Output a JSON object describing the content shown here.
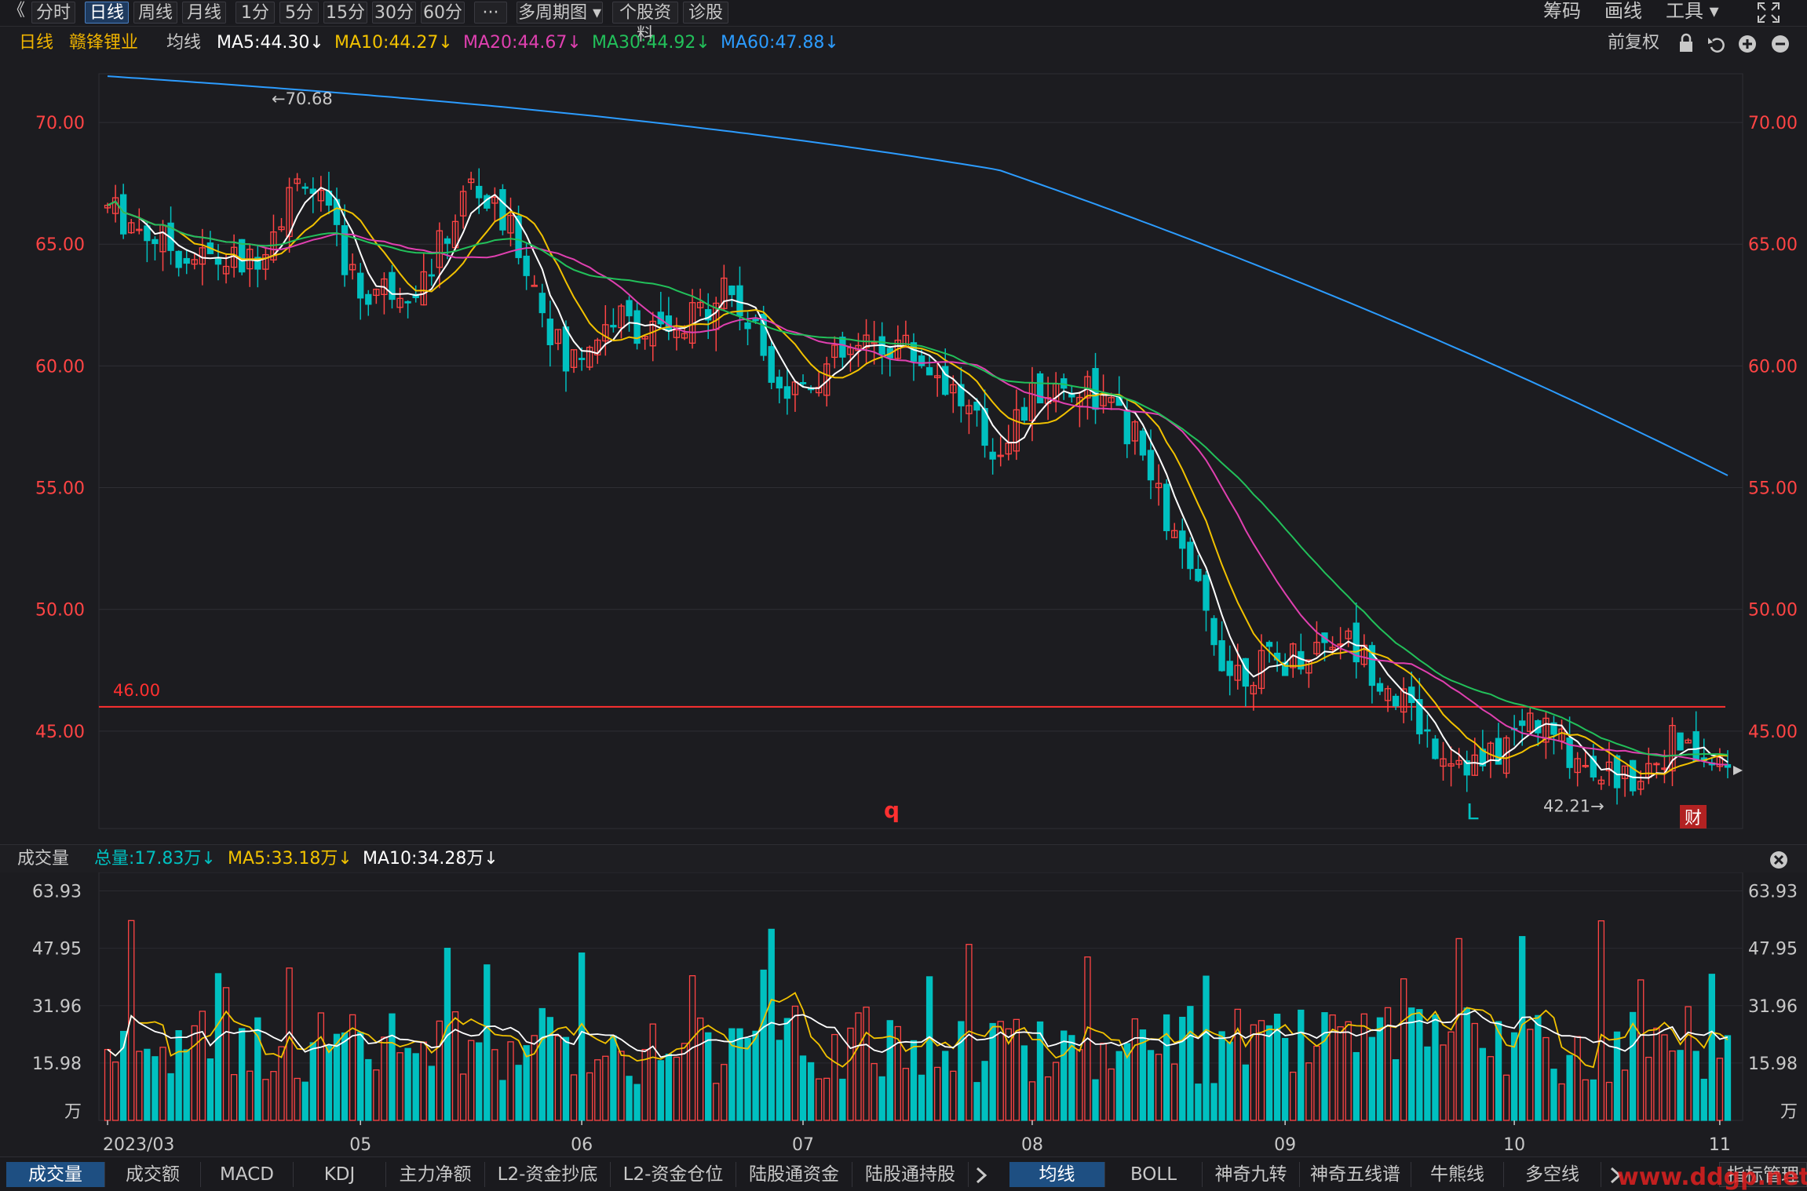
{
  "toolbar": {
    "back_glyph": "《",
    "periods": [
      "分时",
      "日线",
      "周线",
      "月线",
      "1分",
      "5分",
      "15分",
      "30分",
      "60分",
      "···",
      "多周期图 ▾",
      "个股资料",
      "诊股"
    ],
    "active_period": "日线",
    "right_items": [
      "筹码",
      "画线",
      "工具 ▾"
    ],
    "fullscreen_icon": "fullscreen-icon"
  },
  "info": {
    "period": "日线",
    "stock_name": "赣锋锂业",
    "ma_label": "均线",
    "ma5": "MA5:44.30↓",
    "ma10": "MA10:44.27↓",
    "ma20": "MA20:44.67↓",
    "ma30": "MA30:44.92↓",
    "ma60": "MA60:47.88↓",
    "adjust": "前复权",
    "icons": [
      "lock-icon",
      "undo-icon",
      "zoom-in-icon",
      "zoom-out-icon"
    ]
  },
  "colors": {
    "up": "#ff4444",
    "down": "#00c0c0",
    "ma5": "#ffffff",
    "ma10": "#f2c200",
    "ma20": "#e040b0",
    "ma30": "#22c05a",
    "ma60": "#2c9cff",
    "axis_label": "#ff4444"
  },
  "price_chart": {
    "y_ticks": [
      "70.00",
      "65.00",
      "60.00",
      "55.00",
      "50.00",
      "45.00"
    ],
    "high_marker": "←70.68",
    "low_marker": "42.21→",
    "hline_label": "46.00",
    "hline_value": 46.0,
    "events": [
      "q",
      "L",
      "财"
    ]
  },
  "volume": {
    "title": "成交量",
    "total": "总量:17.83万↓",
    "ma5": "MA5:33.18万↓",
    "ma10": "MA10:34.28万↓",
    "y_ticks": [
      "63.93",
      "47.95",
      "31.96",
      "15.98",
      "万"
    ],
    "close_icon": "close-icon"
  },
  "x_axis": {
    "labels": [
      "2023/03",
      "05",
      "06",
      "07",
      "08",
      "09",
      "10",
      "11"
    ]
  },
  "bottom_tabs_left": [
    "成交量",
    "成交额",
    "MACD",
    "KDJ",
    "主力净额",
    "L2-资金抄底",
    "L2-资金仓位",
    "陆股通资金",
    "陆股通持股"
  ],
  "bottom_tabs_right": [
    "均线",
    "BOLL",
    "神奇九转",
    "神奇五线谱",
    "牛熊线",
    "多空线"
  ],
  "bottom_active_left": "成交量",
  "bottom_active_right": "均线",
  "bottom_right_button": "指标管理",
  "watermark": "www.ddgp.net",
  "chart_data": {
    "type": "candlestick",
    "price_range": [
      42.21,
      70.68
    ],
    "hline": 46.0,
    "volume_unit": "万",
    "volume_range": [
      0,
      63.93
    ],
    "x_labels": [
      "2023/03",
      "05",
      "06",
      "07",
      "08",
      "09",
      "10",
      "11"
    ]
  }
}
